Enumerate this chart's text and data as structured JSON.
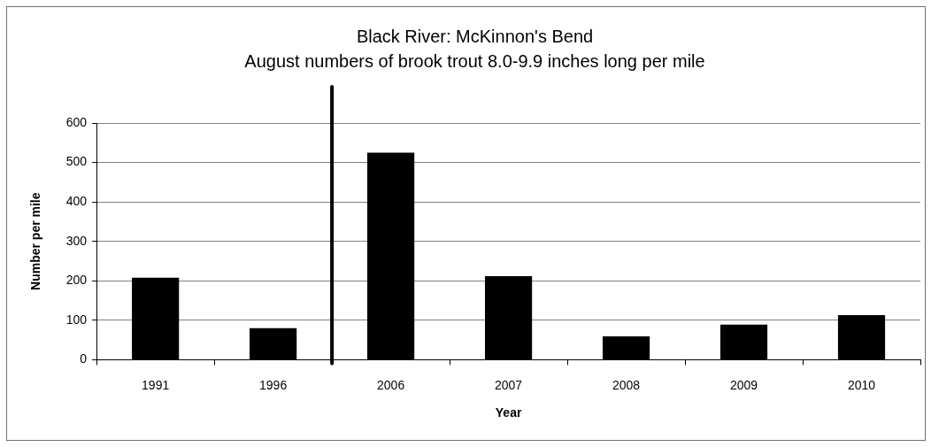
{
  "chart_data": {
    "type": "bar",
    "title": "Black River: McKinnon's Bend",
    "subtitle": "August numbers of brook trout 8.0-9.9 inches long per mile",
    "xlabel": "Year",
    "ylabel": "Number per mile",
    "categories": [
      "1991",
      "1996",
      "2006",
      "2007",
      "2008",
      "2009",
      "2010"
    ],
    "values": [
      208,
      80,
      525,
      212,
      59,
      89,
      113
    ],
    "color": "#000000",
    "ylim": [
      0,
      600
    ],
    "yticks": [
      0,
      100,
      200,
      300,
      400,
      500,
      600
    ],
    "grid": "y",
    "ref_lines": [
      {
        "axis": "x",
        "value": "2006",
        "color": "#000000"
      }
    ]
  }
}
